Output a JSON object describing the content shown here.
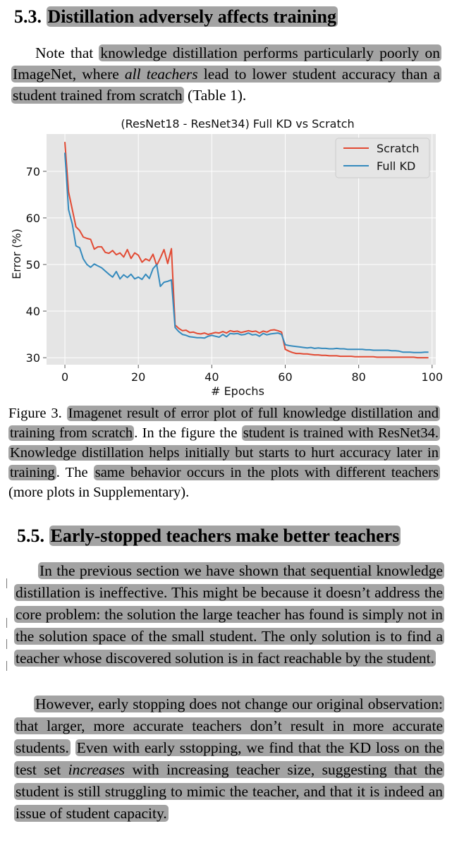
{
  "section_53": {
    "number": "5.3.",
    "title": "Distillation adversely affects training"
  },
  "intro": {
    "pre": "Note that ",
    "hl1": "knowledge distillation performs particularly poorly on ImageNet, where ",
    "hl1_italic": "all teachers",
    "hl1_post": " lead to lower student accuracy than a student trained from scratch",
    "post": " (Table 1)."
  },
  "figure": {
    "prefix": "Figure 3.",
    "hl1": "Imagenet result of error plot of full knowledge distillation and training from scratch",
    "mid1": ". In the figure the ",
    "hl2": "student is trained with ResNet34. Knowledge distillation helps initially but starts to hurt accuracy later in training",
    "mid2": ". The ",
    "hl3": "same behavior occurs in the plots with different teachers",
    "post": " (more plots in Supplementary)."
  },
  "section_55": {
    "number": "5.5.",
    "title": "Early-stopped teachers make better teachers"
  },
  "para1": {
    "text": "In the previous section we have shown that sequential knowledge distillation is ineffective. This might be because it doesn’t address the core problem: the solution the large teacher has found is simply not in the solution space of the small student. The only solution is to find a teacher whose discovered solution is in fact reachable by the student."
  },
  "para2": {
    "hl1": "However, early stopping does not change our original observation: that larger, more accurate teachers don’t result in more accurate students.",
    "hl2_a": "Even with early sstopping, we find that the KD loss on the test set ",
    "hl2_italic": "increases",
    "hl2_b": " with increasing teacher size, suggesting that the student is still struggling to mimic the teacher, and that it is indeed an issue of student capacity."
  },
  "chart_data": {
    "type": "line",
    "title": "(ResNet18 - ResNet34) Full KD vs Scratch",
    "xlabel": "# Epochs",
    "ylabel": "Error (%)",
    "xlim": [
      -5,
      101
    ],
    "ylim": [
      28.5,
      78
    ],
    "xticks": [
      0,
      20,
      40,
      60,
      80,
      100
    ],
    "yticks": [
      30,
      40,
      50,
      60,
      70
    ],
    "grid": true,
    "legend_position": "top-right",
    "x": [
      0,
      1,
      2,
      3,
      4,
      5,
      6,
      7,
      8,
      9,
      10,
      11,
      12,
      13,
      14,
      15,
      16,
      17,
      18,
      19,
      20,
      21,
      22,
      23,
      24,
      25,
      26,
      27,
      28,
      29,
      30,
      31,
      32,
      33,
      34,
      35,
      36,
      37,
      38,
      39,
      40,
      41,
      42,
      43,
      44,
      45,
      46,
      47,
      48,
      49,
      50,
      51,
      52,
      53,
      54,
      55,
      56,
      57,
      58,
      59,
      60,
      61,
      62,
      63,
      64,
      65,
      66,
      67,
      68,
      69,
      70,
      71,
      72,
      73,
      74,
      75,
      76,
      77,
      78,
      79,
      80,
      81,
      82,
      83,
      84,
      85,
      86,
      87,
      88,
      89,
      90,
      91,
      92,
      93,
      94,
      95,
      96,
      97,
      98,
      99
    ],
    "series": [
      {
        "name": "Scratch",
        "color": "#e24a33",
        "values": [
          76.3,
          65.6,
          61.8,
          58.1,
          57.3,
          55.9,
          55.6,
          55.4,
          53.3,
          53.8,
          53.8,
          52.6,
          52.4,
          53.0,
          52.1,
          52.5,
          51.6,
          53.2,
          51.3,
          52.5,
          52.0,
          50.5,
          51.2,
          50.8,
          52.2,
          49.8,
          51.4,
          53.2,
          50.2,
          53.4,
          37.0,
          36.3,
          35.8,
          35.9,
          35.4,
          35.5,
          35.2,
          35.1,
          35.3,
          35.0,
          35.2,
          35.4,
          35.3,
          35.6,
          35.3,
          35.8,
          35.6,
          35.7,
          35.4,
          35.6,
          35.8,
          35.6,
          35.7,
          35.3,
          35.7,
          35.5,
          35.9,
          36.0,
          35.8,
          35.5,
          31.8,
          31.4,
          31.1,
          30.9,
          30.9,
          30.8,
          30.8,
          30.7,
          30.6,
          30.6,
          30.5,
          30.5,
          30.4,
          30.4,
          30.4,
          30.3,
          30.3,
          30.3,
          30.3,
          30.2,
          30.2,
          30.2,
          30.2,
          30.2,
          30.2,
          30.1,
          30.1,
          30.1,
          30.1,
          30.1,
          30.1,
          30.1,
          30.1,
          30.1,
          30.1,
          30.1,
          30.0,
          30.0,
          30.0,
          30.0
        ]
      },
      {
        "name": "Full KD",
        "color": "#348abd",
        "values": [
          74.0,
          61.8,
          58.7,
          54.0,
          53.6,
          51.2,
          50.0,
          49.4,
          50.1,
          49.7,
          49.3,
          48.6,
          47.9,
          47.3,
          48.5,
          46.9,
          47.8,
          47.2,
          47.9,
          46.9,
          47.3,
          46.8,
          47.9,
          47.0,
          49.1,
          50.0,
          45.3,
          46.2,
          46.4,
          46.7,
          36.5,
          35.6,
          35.0,
          34.8,
          34.5,
          34.4,
          34.3,
          34.3,
          34.2,
          34.6,
          34.8,
          34.6,
          34.4,
          35.0,
          34.5,
          35.2,
          35.1,
          35.2,
          34.9,
          35.0,
          35.3,
          34.9,
          35.0,
          34.6,
          35.2,
          34.9,
          35.1,
          35.2,
          35.3,
          35.0,
          32.8,
          32.6,
          32.5,
          32.4,
          32.3,
          32.2,
          32.1,
          32.2,
          32.0,
          32.1,
          32.0,
          32.0,
          31.9,
          31.9,
          32.0,
          31.9,
          31.9,
          31.8,
          31.8,
          31.8,
          31.8,
          31.8,
          31.7,
          31.7,
          31.6,
          31.6,
          31.6,
          31.6,
          31.6,
          31.5,
          31.5,
          31.4,
          31.2,
          31.2,
          31.2,
          31.1,
          31.1,
          31.1,
          31.2,
          31.2
        ]
      }
    ]
  }
}
